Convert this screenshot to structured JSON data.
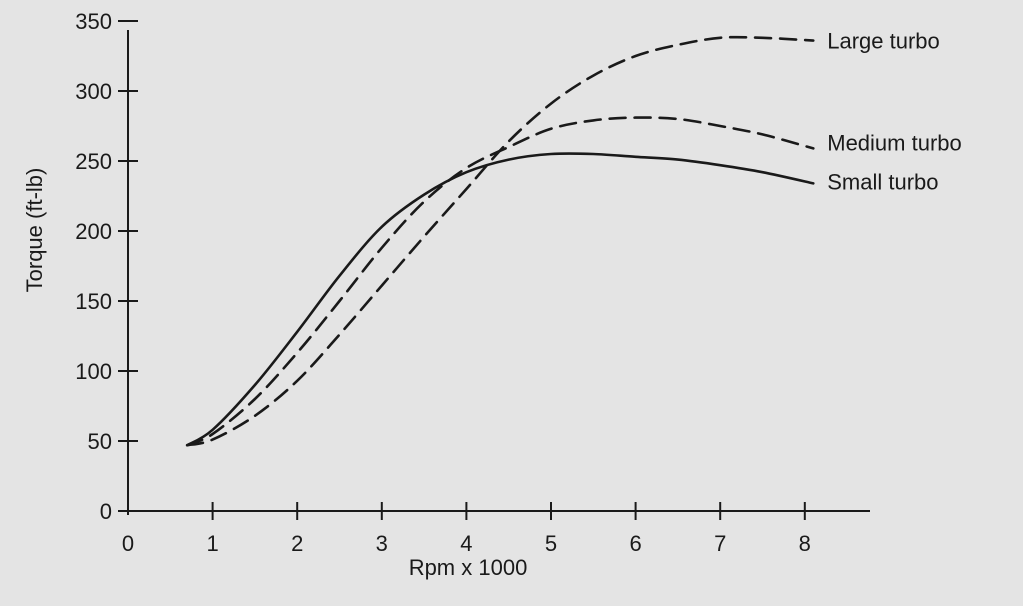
{
  "chart_data": {
    "type": "line",
    "title": "",
    "xlabel": "Rpm x 1000",
    "ylabel": "Torque (ft-lb)",
    "xlim": [
      0,
      9
    ],
    "ylim": [
      0,
      360
    ],
    "xticks": [
      0,
      1,
      2,
      3,
      4,
      5,
      6,
      7,
      8
    ],
    "yticks": [
      0,
      50,
      100,
      150,
      200,
      250,
      300,
      350
    ],
    "grid": false,
    "legend": "inline labels at right end of each curve",
    "series": [
      {
        "name": "Small turbo",
        "line_style": "solid",
        "color": "#1a1a1a",
        "x": [
          0.7,
          1.0,
          1.5,
          2.0,
          2.5,
          3.0,
          3.5,
          4.0,
          4.5,
          5.0,
          5.5,
          6.0,
          6.5,
          7.0,
          7.5,
          8.1
        ],
        "y": [
          47,
          58,
          90,
          128,
          168,
          203,
          226,
          242,
          251,
          255,
          255,
          253,
          251,
          247,
          242,
          234
        ]
      },
      {
        "name": "Medium turbo",
        "line_style": "dashed",
        "color": "#1a1a1a",
        "x": [
          0.7,
          1.0,
          1.5,
          2.0,
          2.5,
          3.0,
          3.5,
          4.0,
          4.5,
          5.0,
          5.5,
          6.0,
          6.5,
          7.0,
          7.5,
          8.1
        ],
        "y": [
          47,
          55,
          80,
          113,
          150,
          188,
          221,
          245,
          260,
          273,
          279,
          281,
          280,
          275,
          269,
          259
        ]
      },
      {
        "name": "Large turbo",
        "line_style": "dashed",
        "color": "#1a1a1a",
        "x": [
          0.7,
          1.0,
          1.5,
          2.0,
          2.5,
          3.0,
          3.5,
          4.0,
          4.5,
          5.0,
          5.5,
          6.0,
          6.5,
          7.0,
          7.5,
          8.1
        ],
        "y": [
          47,
          51,
          68,
          93,
          126,
          161,
          196,
          230,
          264,
          291,
          311,
          325,
          333,
          338,
          338,
          336
        ]
      }
    ]
  }
}
